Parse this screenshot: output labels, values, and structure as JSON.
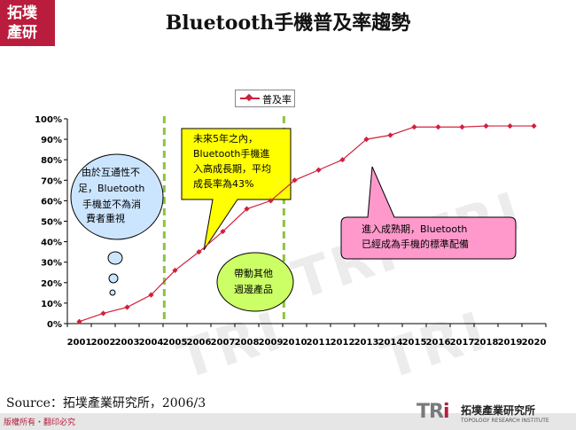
{
  "header": {
    "logo_line1": "拓墣",
    "logo_line2": "產研",
    "title": "Bluetooth手機普及率趨勢",
    "watermark": "TRI"
  },
  "chart_data": {
    "type": "line",
    "title": "Bluetooth手機普及率趨勢",
    "categories": [
      "2001",
      "2002",
      "2003",
      "2004",
      "2005",
      "2006",
      "2007",
      "2008",
      "2009",
      "2010",
      "2011",
      "2012",
      "2013",
      "2014",
      "2015",
      "2016",
      "2017",
      "2018",
      "2019",
      "2020"
    ],
    "series": [
      {
        "name": "普及率",
        "values": [
          1,
          5,
          8,
          14,
          26,
          35,
          45,
          56,
          60,
          70,
          75,
          80,
          90,
          92,
          96,
          96,
          96,
          96.5,
          96.5,
          96.5
        ],
        "color": "#d0203c"
      }
    ],
    "y_ticks": [
      "0%",
      "10%",
      "20%",
      "30%",
      "40%",
      "50%",
      "60%",
      "70%",
      "80%",
      "90%",
      "100%"
    ],
    "ylim": [
      0,
      100
    ],
    "legend_position": "top-center",
    "grid": false,
    "vertical_markers": [
      {
        "after_year": "2004",
        "color": "#8cc43c"
      },
      {
        "after_year": "2009",
        "color": "#8cc43c"
      }
    ],
    "annotations": {
      "cloud": [
        "由於互通性不",
        "足，Bluetooth",
        "手機並不為消",
        "費者重視"
      ],
      "yellow": [
        "未來5年之內，",
        "Bluetooth手機進",
        "入高成長期，平均",
        "成長率為43%"
      ],
      "green": [
        "帶動其他",
        "週邊產品"
      ],
      "pink": [
        "進入成熟期，Bluetooth",
        "已經成為手機的標準配備"
      ]
    }
  },
  "footer": {
    "source": "Source：拓墣產業研究所，2006/3",
    "copyright": "版權所有・翻印必究",
    "brand_mark_1": "TR",
    "brand_mark_2": "i",
    "brand_name": "拓墣產業研究所",
    "brand_sub": "TOPOLOGY RESEARCH INSTITUTE"
  },
  "colors": {
    "accent": "#b91c3c",
    "line": "#d0203c",
    "marker_line": "#8cc43c",
    "yellow_callout": "#ffff00",
    "green_callout": "#ccff66",
    "pink_callout": "#ff99cc",
    "cloud": "#cce5ff"
  }
}
